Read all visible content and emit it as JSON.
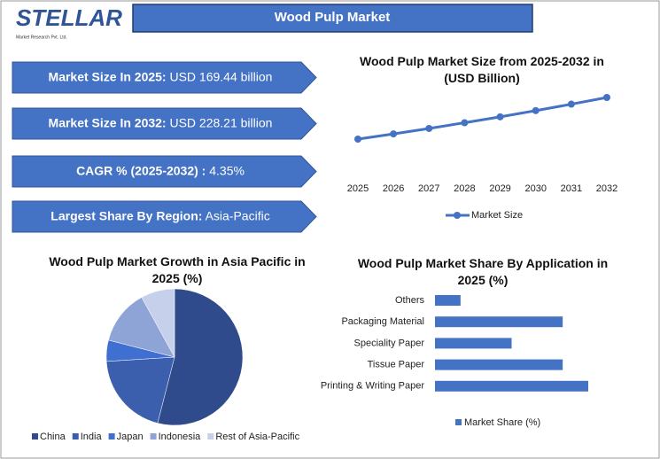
{
  "logo": {
    "name": "STELLAR",
    "tagline": "Market Research Pvt. Ltd."
  },
  "title": "Wood Pulp Market",
  "stats": [
    {
      "label": "Market Size In 2025:",
      "value": "USD 169.44 billion"
    },
    {
      "label": "Market Size In 2032:",
      "value": "USD 228.21 billion"
    },
    {
      "label": "CAGR % (2025-2032) :",
      "value": "4.35%"
    },
    {
      "label": "Largest Share By Region:",
      "value": "Asia-Pacific"
    }
  ],
  "chart_data": [
    {
      "type": "line",
      "title": "Wood Pulp Market Size from 2025-2032 in (USD Billion)",
      "categories": [
        "2025",
        "2026",
        "2027",
        "2028",
        "2029",
        "2030",
        "2031",
        "2032"
      ],
      "series": [
        {
          "name": "Market Size",
          "color": "#4472c4",
          "values": [
            169.44,
            176.81,
            184.5,
            192.53,
            200.9,
            209.64,
            218.76,
            228.21
          ]
        }
      ]
    },
    {
      "type": "pie",
      "title": "Wood Pulp Market Growth in Asia Pacific in 2025 (%)",
      "categories": [
        "China",
        "India",
        "Japan",
        "Indonesia",
        "Rest of Asia-Pacific"
      ],
      "values": [
        54,
        20,
        5,
        13,
        8
      ],
      "colors": [
        "#2f4b8c",
        "#3b5ead",
        "#3f6fd0",
        "#8ea4d6",
        "#c6d0ea"
      ]
    },
    {
      "type": "hbar",
      "title": "Wood Pulp Market Share By Application in 2025 (%)",
      "categories": [
        "Others",
        "Packaging Material",
        "Speciality Paper",
        "Tissue Paper",
        "Printing & Writing Paper"
      ],
      "series": [
        {
          "name": "Market Share (%)",
          "color": "#4472c4",
          "values": [
            5,
            25,
            15,
            25,
            30
          ]
        }
      ]
    }
  ]
}
